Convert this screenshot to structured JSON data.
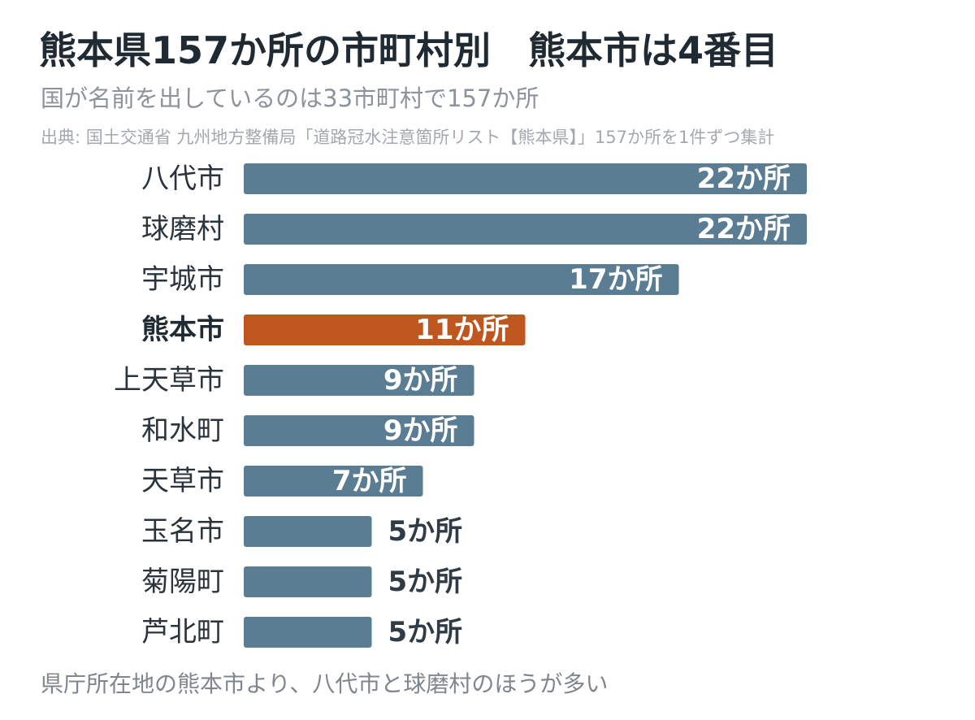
{
  "header": {
    "title": "熊本県157か所の市町村別　熊本市は4番目",
    "subtitle": "国が名前を出しているのは33市町村で157か所",
    "source": "出典: 国土交通省 九州地方整備局「道路冠水注意箇所リスト【熊本県】」157か所を1件ずつ集計"
  },
  "footer": {
    "note": "県庁所在地の熊本市より、八代市と球磨村のほうが多い"
  },
  "chart_data": {
    "type": "bar",
    "orientation": "horizontal",
    "categories": [
      "八代市",
      "球磨村",
      "宇城市",
      "熊本市",
      "上天草市",
      "和水町",
      "天草市",
      "玉名市",
      "菊陽町",
      "芦北町"
    ],
    "values": [
      22,
      22,
      17,
      11,
      9,
      9,
      7,
      5,
      5,
      5
    ],
    "value_labels": [
      "22か所",
      "22か所",
      "17か所",
      "11か所",
      "9か所",
      "9か所",
      "7か所",
      "5か所",
      "5か所",
      "5か所"
    ],
    "highlight": "熊本市",
    "colors": {
      "bar": "#5a7d94",
      "highlight": "#c0561f",
      "label_inside": "#ffffff",
      "label_outside": "#2f3b45"
    },
    "xlim": [
      0,
      22
    ],
    "grid": false
  }
}
